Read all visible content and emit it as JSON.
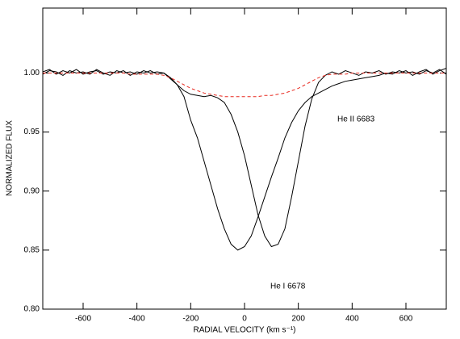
{
  "chart_data": {
    "type": "line",
    "xlabel": "RADIAL VELOCITY (km s⁻¹)",
    "ylabel": "NORMALIZED FLUX",
    "xlim": [
      -750,
      750
    ],
    "ylim": [
      0.8,
      1.055
    ],
    "xticks": [
      -600,
      -400,
      -200,
      0,
      200,
      400,
      600
    ],
    "yticks": [
      {
        "value": 0.8,
        "label": "0.80"
      },
      {
        "value": 0.85,
        "label": "0.85"
      },
      {
        "value": 0.9,
        "label": "0.90"
      },
      {
        "value": 0.95,
        "label": "0.95"
      },
      {
        "value": 1.0,
        "label": "1.00"
      }
    ],
    "x": [
      -750,
      -725,
      -700,
      -675,
      -650,
      -625,
      -600,
      -575,
      -550,
      -525,
      -500,
      -475,
      -450,
      -425,
      -400,
      -375,
      -350,
      -325,
      -300,
      -275,
      -250,
      -225,
      -200,
      -175,
      -150,
      -125,
      -100,
      -75,
      -50,
      -25,
      0,
      25,
      50,
      75,
      100,
      125,
      150,
      175,
      200,
      225,
      250,
      275,
      300,
      325,
      350,
      375,
      400,
      425,
      450,
      475,
      500,
      525,
      550,
      575,
      600,
      625,
      650,
      675,
      700,
      725,
      750
    ],
    "series": [
      {
        "name": "He I 6678",
        "color": "#000000",
        "dash": false,
        "values": [
          1.001,
          1.003,
          0.999,
          1.002,
          1.0,
          1.003,
          0.999,
          1.001,
          1.002,
          0.999,
          1.001,
          1.0,
          1.002,
          0.998,
          1.001,
          1.0,
          1.002,
          0.999,
          1.0,
          0.996,
          0.99,
          0.98,
          0.96,
          0.945,
          0.925,
          0.905,
          0.885,
          0.868,
          0.855,
          0.85,
          0.853,
          0.862,
          0.878,
          0.895,
          0.912,
          0.928,
          0.945,
          0.958,
          0.968,
          0.975,
          0.98,
          0.983,
          0.986,
          0.989,
          0.991,
          0.993,
          0.994,
          0.995,
          0.996,
          0.997,
          0.998,
          1.0,
          0.999,
          1.002,
          1.0,
          1.001,
          0.999,
          1.002,
          1.0,
          1.003,
          0.999
        ]
      },
      {
        "name": "He II 6683",
        "color": "#000000",
        "dash": false,
        "values": [
          0.999,
          1.002,
          1.001,
          0.998,
          1.002,
          1.0,
          1.001,
          0.999,
          1.003,
          1.0,
          0.998,
          1.002,
          1.0,
          1.001,
          0.999,
          1.002,
          1.0,
          1.001,
          1.0,
          0.995,
          0.99,
          0.985,
          0.982,
          0.981,
          0.98,
          0.981,
          0.979,
          0.975,
          0.965,
          0.95,
          0.93,
          0.905,
          0.88,
          0.862,
          0.853,
          0.855,
          0.868,
          0.895,
          0.925,
          0.955,
          0.978,
          0.992,
          0.998,
          1.001,
          0.999,
          1.002,
          1.0,
          0.998,
          1.001,
          1.0,
          1.002,
          0.999,
          1.001,
          1.0,
          1.002,
          0.998,
          1.001,
          1.003,
          0.999,
          1.002,
          1.004
        ]
      },
      {
        "color": "#e8281e",
        "dash": true,
        "values": [
          1.0,
          1.0,
          1.0,
          1.0,
          1.0,
          1.0,
          1.0,
          1.0,
          1.0,
          1.0,
          1.0,
          1.0,
          1.0,
          0.999,
          0.999,
          0.999,
          0.999,
          0.999,
          0.998,
          0.996,
          0.993,
          0.99,
          0.987,
          0.985,
          0.983,
          0.982,
          0.981,
          0.98,
          0.98,
          0.98,
          0.98,
          0.98,
          0.98,
          0.981,
          0.981,
          0.982,
          0.983,
          0.985,
          0.987,
          0.99,
          0.993,
          0.996,
          0.998,
          0.999,
          0.999,
          0.999,
          1.0,
          1.0,
          1.0,
          1.0,
          1.0,
          1.0,
          1.0,
          1.0,
          1.0,
          1.0,
          1.0,
          1.0,
          1.0,
          1.0,
          1.0
        ]
      }
    ]
  }
}
